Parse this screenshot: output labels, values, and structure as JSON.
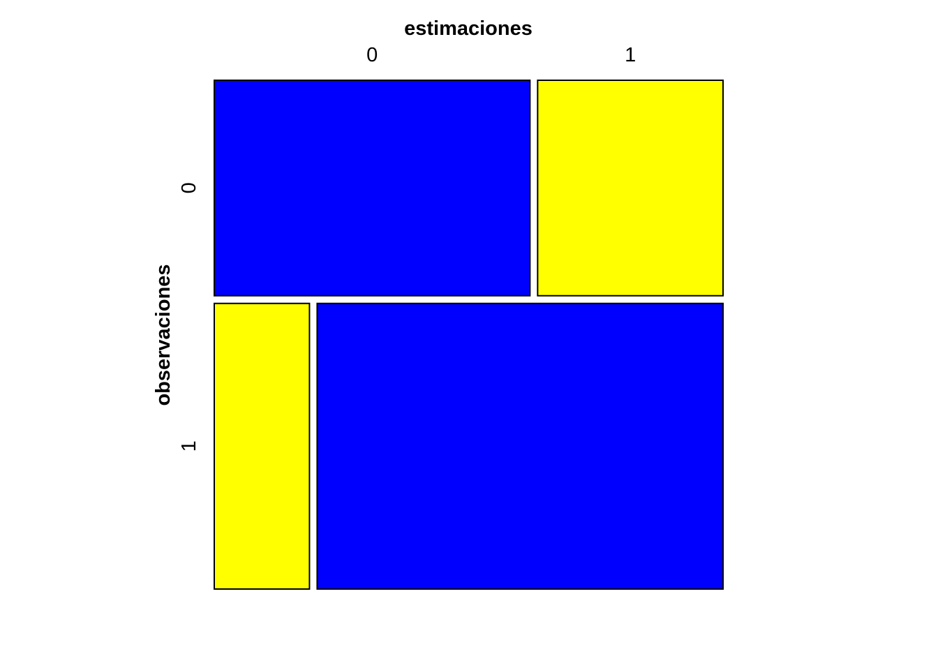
{
  "chart_data": {
    "type": "mosaic",
    "title": "",
    "xlabel": "estimaciones",
    "ylabel": "observaciones",
    "x_categories": [
      "0",
      "1"
    ],
    "y_categories": [
      "0",
      "1"
    ],
    "row_proportions": [
      0.43,
      0.57
    ],
    "cells": [
      {
        "row": "0",
        "col": "0",
        "proportion_within_row": 0.63,
        "color": "#0000FF"
      },
      {
        "row": "0",
        "col": "1",
        "proportion_within_row": 0.37,
        "color": "#FFFF00"
      },
      {
        "row": "1",
        "col": "0",
        "proportion_within_row": 0.19,
        "color": "#FFFF00"
      },
      {
        "row": "1",
        "col": "1",
        "proportion_within_row": 0.81,
        "color": "#0000FF"
      }
    ],
    "colors": {
      "correct": "#0000FF",
      "incorrect": "#FFFF00",
      "border": "#000000"
    }
  }
}
